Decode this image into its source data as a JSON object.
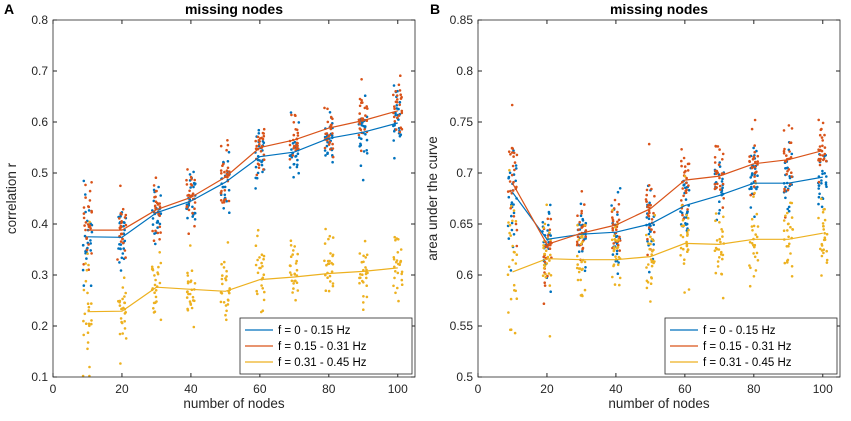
{
  "colors": {
    "series": [
      "#0072bd",
      "#d95319",
      "#edb120"
    ],
    "axis": "#262626",
    "background": "#ffffff"
  },
  "chart_data": [
    {
      "panel_label": "A",
      "type": "line",
      "title": "missing nodes",
      "xlabel": "number of nodes",
      "ylabel": "correlation r",
      "xlim": [
        0,
        105
      ],
      "ylim": [
        0.1,
        0.8
      ],
      "xticks": [
        0,
        20,
        40,
        60,
        80,
        100
      ],
      "yticks": [
        0.1,
        0.2,
        0.3,
        0.4,
        0.5,
        0.6,
        0.7,
        0.8
      ],
      "ytick_labels": [
        "0.1",
        "0.2",
        "0.3",
        "0.4",
        "0.5",
        "0.6",
        "0.7",
        "0.8"
      ],
      "legend_position": "bottom-right",
      "x": [
        10,
        20,
        30,
        40,
        50,
        60,
        70,
        80,
        90,
        100
      ],
      "series": [
        {
          "name": "f = 0 - 0.15 Hz",
          "mean": [
            0.375,
            0.374,
            0.422,
            0.445,
            0.482,
            0.532,
            0.541,
            0.568,
            0.58,
            0.598
          ],
          "spread": 0.06
        },
        {
          "name": "f = 0.15 - 0.31 Hz",
          "mean": [
            0.388,
            0.388,
            0.428,
            0.452,
            0.492,
            0.55,
            0.565,
            0.588,
            0.603,
            0.622
          ],
          "spread": 0.06
        },
        {
          "name": "f = 0.31 - 0.45 Hz",
          "mean": [
            0.228,
            0.229,
            0.276,
            0.272,
            0.268,
            0.291,
            0.296,
            0.303,
            0.307,
            0.314
          ],
          "spread": 0.08
        }
      ]
    },
    {
      "panel_label": "B",
      "type": "line",
      "title": "missing nodes",
      "xlabel": "number of nodes",
      "ylabel": "area under the curve",
      "xlim": [
        0,
        105
      ],
      "ylim": [
        0.5,
        0.85
      ],
      "xticks": [
        0,
        20,
        40,
        60,
        80,
        100
      ],
      "yticks": [
        0.5,
        0.55,
        0.6,
        0.65,
        0.7,
        0.75,
        0.8,
        0.85
      ],
      "ytick_labels": [
        "0.5",
        "0.55",
        "0.6",
        "0.65",
        "0.7",
        "0.75",
        "0.8",
        "0.85"
      ],
      "legend_position": "bottom-right",
      "x": [
        10,
        20,
        30,
        40,
        50,
        60,
        70,
        80,
        90,
        100
      ],
      "series": [
        {
          "name": "f = 0 - 0.15 Hz",
          "mean": [
            0.681,
            0.635,
            0.64,
            0.642,
            0.65,
            0.668,
            0.678,
            0.69,
            0.69,
            0.696
          ],
          "spread": 0.04
        },
        {
          "name": "f = 0.15 - 0.31 Hz",
          "mean": [
            0.69,
            0.63,
            0.641,
            0.649,
            0.665,
            0.693,
            0.697,
            0.709,
            0.713,
            0.722
          ],
          "spread": 0.04
        },
        {
          "name": "f = 0.31 - 0.45 Hz",
          "mean": [
            0.603,
            0.616,
            0.615,
            0.615,
            0.618,
            0.631,
            0.63,
            0.635,
            0.635,
            0.641
          ],
          "spread": 0.045
        }
      ]
    }
  ]
}
